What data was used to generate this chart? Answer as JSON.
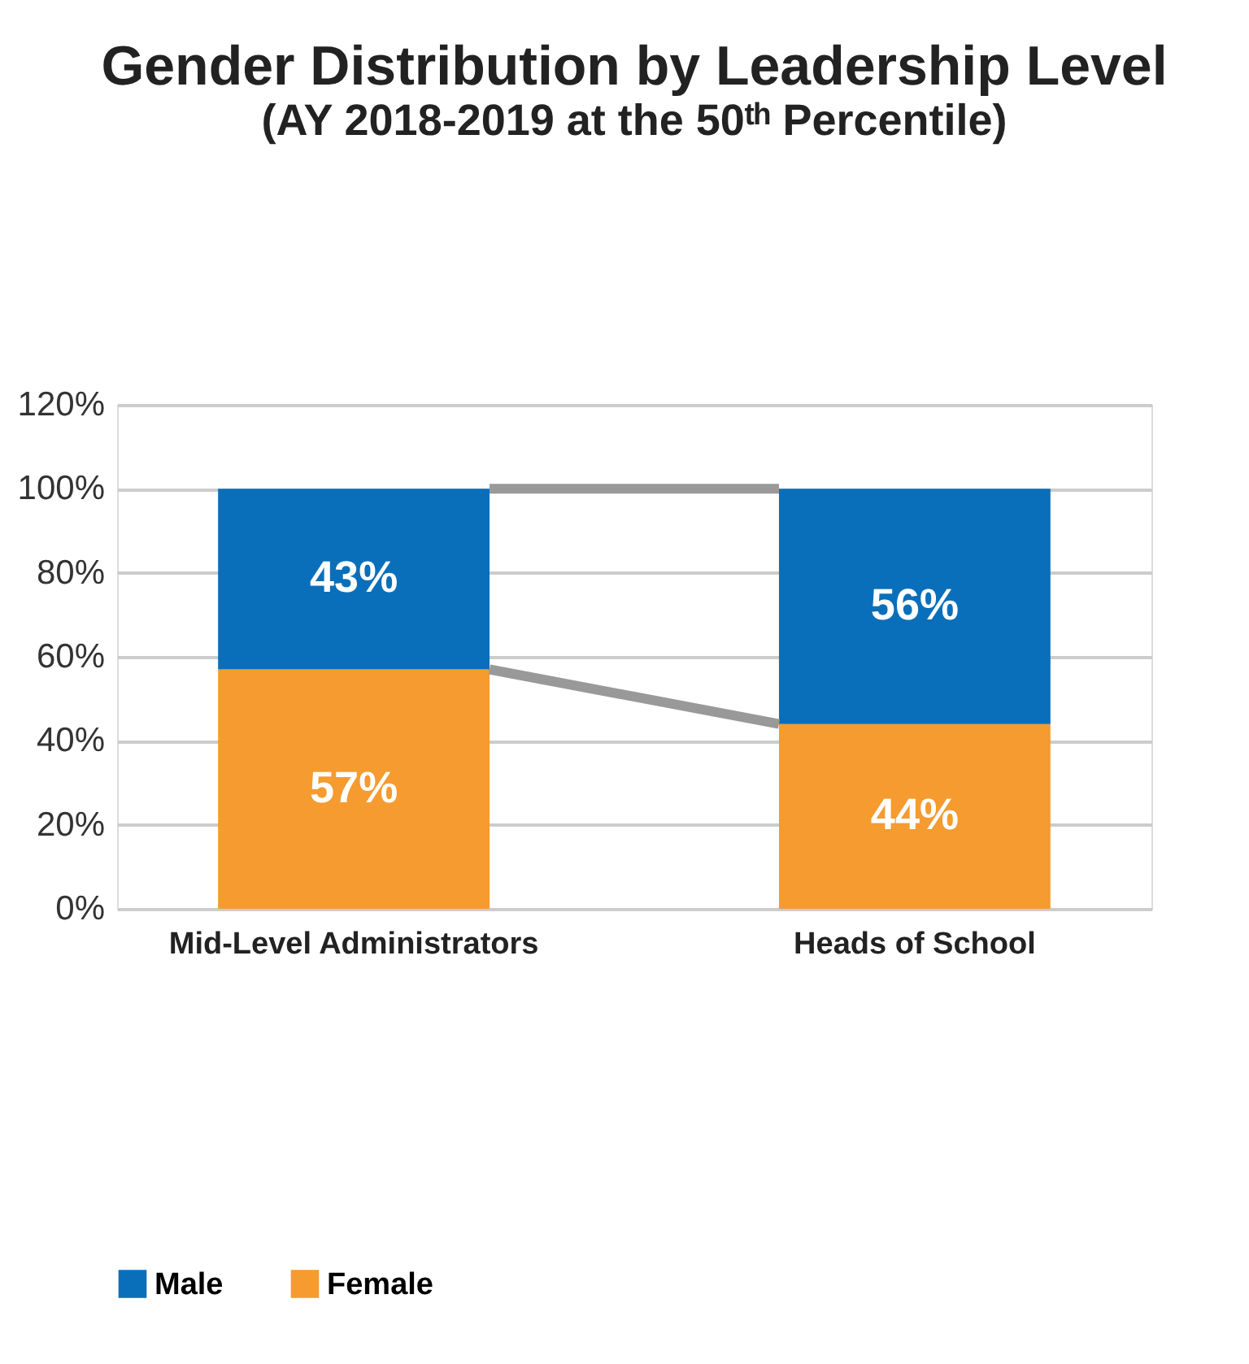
{
  "chart_data": {
    "type": "bar",
    "title": "Gender Distribution by Leadership Level",
    "subtitle": "(AY 2018-2019 at the 50ᵗʰ Percentile)",
    "categories": [
      "Mid-Level Administrators",
      "Heads of School"
    ],
    "stacked": true,
    "series": [
      {
        "name": "Female",
        "color": "#f59b2f",
        "values": [
          57,
          44
        ]
      },
      {
        "name": "Male",
        "color": "#0a6fba",
        "values": [
          43,
          56
        ]
      }
    ],
    "ylim": [
      0,
      120
    ],
    "yticks": [
      {
        "value": 0,
        "label": "0%"
      },
      {
        "value": 20,
        "label": "20%"
      },
      {
        "value": 40,
        "label": "40%"
      },
      {
        "value": 60,
        "label": "60%"
      },
      {
        "value": 80,
        "label": "80%"
      },
      {
        "value": 100,
        "label": "100%"
      },
      {
        "value": 120,
        "label": "120%"
      }
    ],
    "value_labels": [
      [
        "57%",
        "44%"
      ],
      [
        "43%",
        "56%"
      ]
    ],
    "grid": "y",
    "legend": "bottom"
  }
}
